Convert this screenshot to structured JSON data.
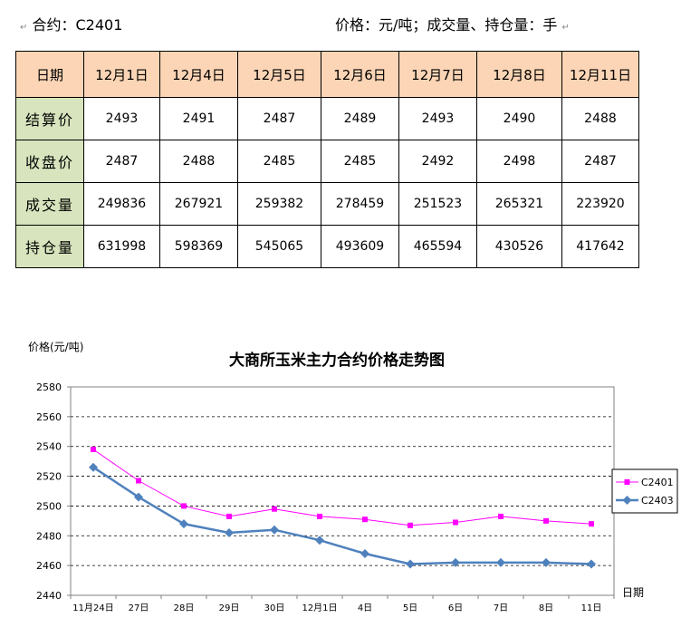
{
  "header": {
    "contract": "合约：C2401",
    "units": "价格：元/吨；成交量、持仓量：手",
    "mark": "↵"
  },
  "table": {
    "columns": [
      "日期",
      "12月1日",
      "12月4日",
      "12月5日",
      "12月6日",
      "12月7日",
      "12月8日",
      "12月11日"
    ],
    "rows": [
      {
        "label": "结算价",
        "values": [
          "2493",
          "2491",
          "2487",
          "2489",
          "2493",
          "2490",
          "2488"
        ]
      },
      {
        "label": "收盘价",
        "values": [
          "2487",
          "2488",
          "2485",
          "2485",
          "2492",
          "2498",
          "2487"
        ]
      },
      {
        "label": "成交量",
        "values": [
          "249836",
          "267921",
          "259382",
          "278459",
          "251523",
          "265321",
          "223920"
        ]
      },
      {
        "label": "持仓量",
        "values": [
          "631998",
          "598369",
          "545065",
          "493609",
          "465594",
          "430526",
          "417642"
        ]
      }
    ]
  },
  "chart_data": {
    "type": "line",
    "title": "大商所玉米主力合约价格走势图",
    "ylabel": "价格(元/吨)",
    "xlabel": "日期",
    "categories": [
      "11月24日",
      "27日",
      "28日",
      "29日",
      "30日",
      "12月1日",
      "4日",
      "5日",
      "6日",
      "7日",
      "8日",
      "11日"
    ],
    "ylim": [
      2440,
      2580
    ],
    "yticks": [
      2440,
      2460,
      2480,
      2500,
      2520,
      2540,
      2560,
      2580
    ],
    "grid": "horizontal dashed",
    "legend": "right",
    "series": [
      {
        "name": "C2401",
        "color": "#ff00ff",
        "marker": "square",
        "values": [
          2538,
          2517,
          2500,
          2493,
          2498,
          2493,
          2491,
          2487,
          2489,
          2493,
          2490,
          2488
        ]
      },
      {
        "name": "C2403",
        "color": "#4f81bd",
        "marker": "diamond",
        "values": [
          2526,
          2506,
          2488,
          2482,
          2484,
          2477,
          2468,
          2461,
          2462,
          2462,
          2462,
          2461
        ]
      }
    ]
  }
}
